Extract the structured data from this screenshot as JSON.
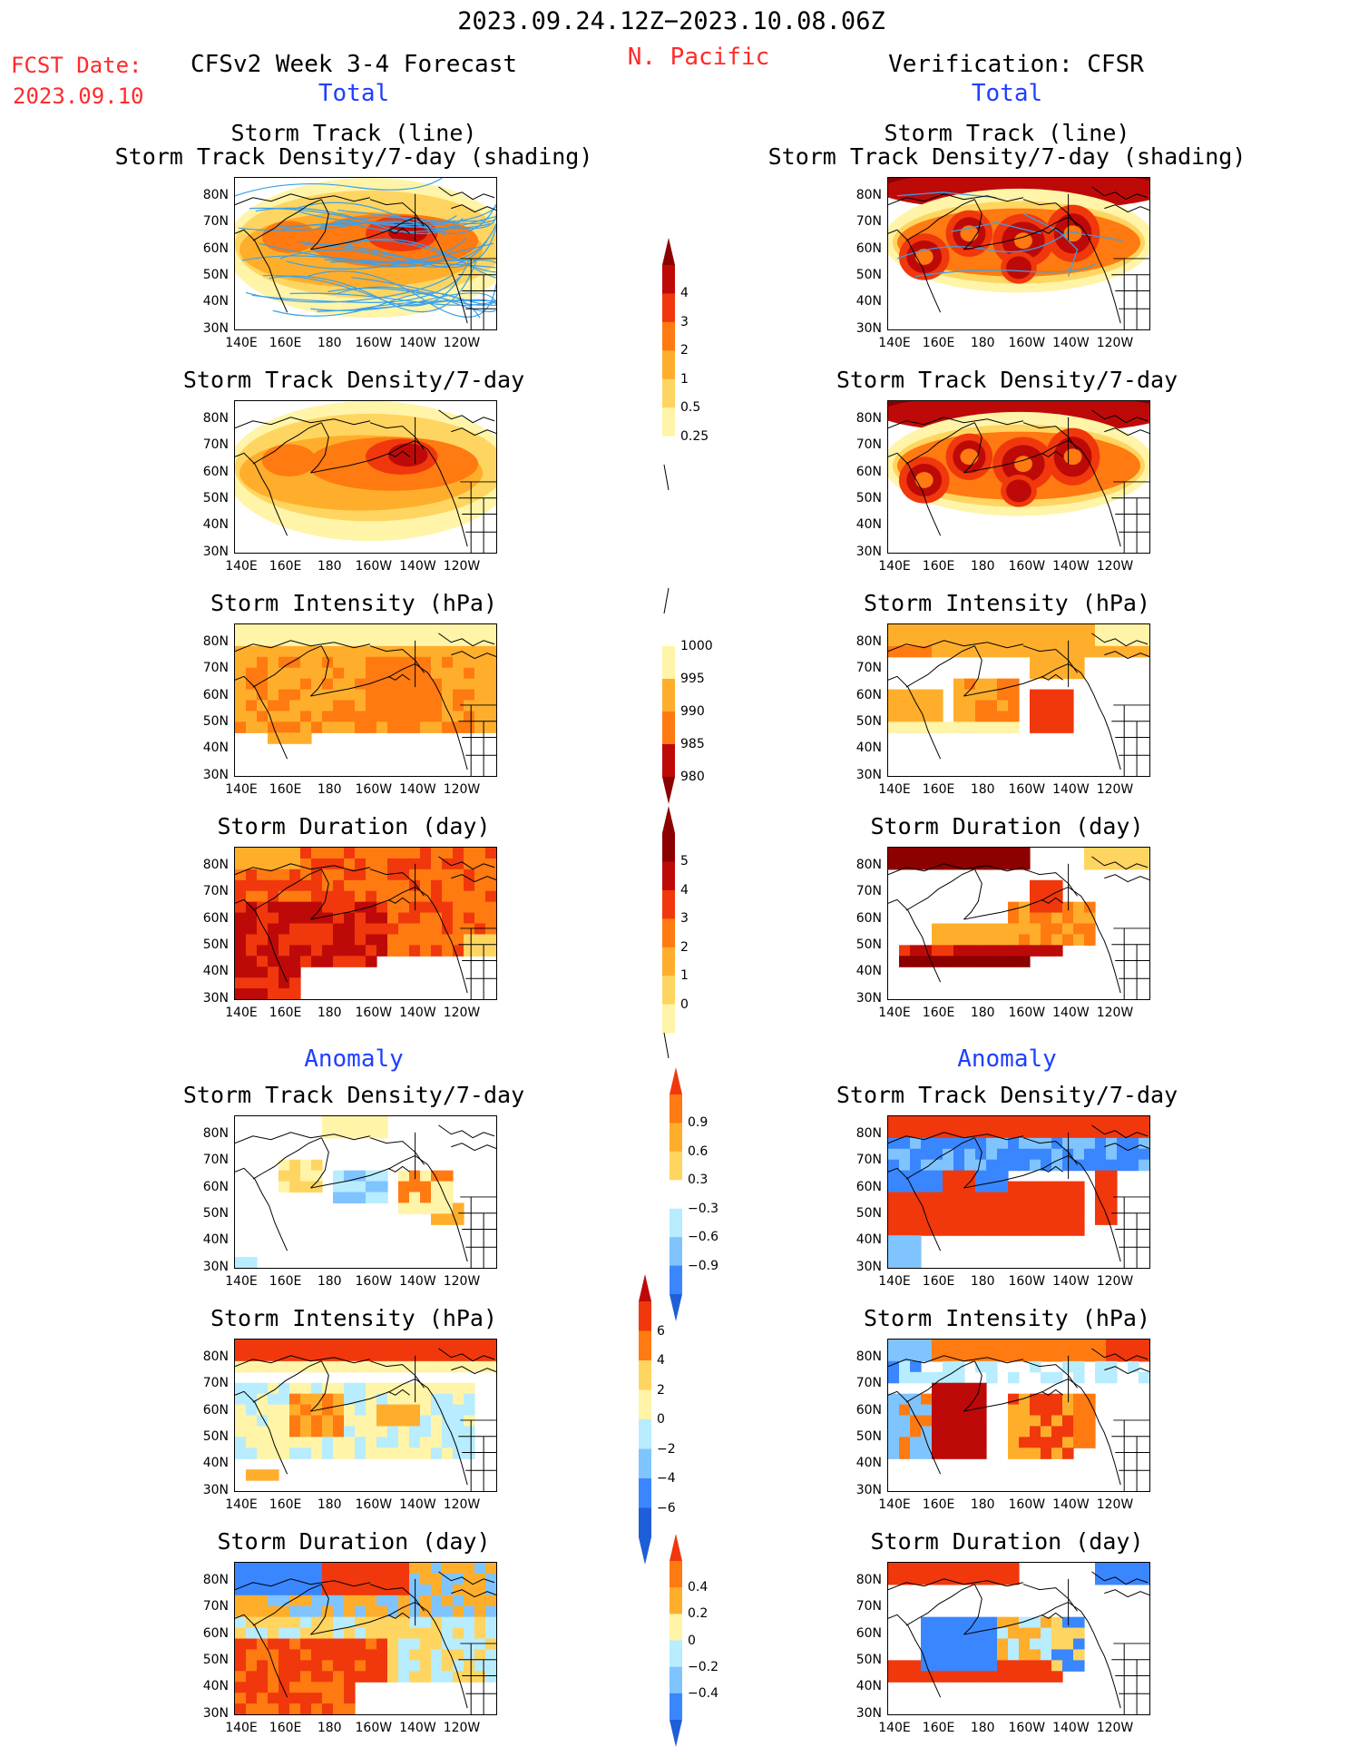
{
  "header": {
    "period": "2023.09.24.12Z−2023.10.08.06Z",
    "region": "N. Pacific",
    "fcst_label": "FCST Date:",
    "fcst_date": "2023.09.10",
    "left_title": "CFSv2 Week 3-4 Forecast",
    "right_title": "Verification: CFSR",
    "total_label": "Total",
    "anomaly_label": "Anomaly"
  },
  "axes": {
    "lat_labels": [
      "80N",
      "70N",
      "60N",
      "50N",
      "40N",
      "30N"
    ],
    "lon_labels": [
      "140E",
      "160E",
      "180",
      "160W",
      "140W",
      "120W"
    ]
  },
  "panels": {
    "track_line_title": "Storm Track (line)",
    "track_shade_title": "Storm Track Density/7-day (shading)",
    "density_title": "Storm Track Density/7-day",
    "intensity_title": "Storm Intensity (hPa)",
    "duration_title": "Storm Duration (day)"
  },
  "colorbars": {
    "density_total": [
      "4",
      "3",
      "2",
      "1",
      "0.5",
      "0.25"
    ],
    "intensity_total": [
      "1000",
      "995",
      "990",
      "985",
      "980"
    ],
    "duration_total": [
      "5",
      "4",
      "3",
      "2",
      "1",
      "0"
    ],
    "density_anom": [
      "0.9",
      "0.6",
      "0.3",
      "−0.3",
      "−0.6",
      "−0.9"
    ],
    "intensity_anom": [
      "6",
      "4",
      "2",
      "0",
      "−2",
      "−4",
      "−6"
    ],
    "duration_anom": [
      "0.4",
      "0.2",
      "0",
      "−0.2",
      "−0.4"
    ]
  },
  "colors": {
    "warm": [
      "#fff4a8",
      "#ffd561",
      "#ffae2c",
      "#ff7a10",
      "#f0380c",
      "#bd0a08",
      "#8c0000"
    ],
    "cool": [
      "#b8ecff",
      "#7fc4ff",
      "#3a86ff",
      "#1e5ed8"
    ],
    "track_line": "#3aa0ea"
  }
}
